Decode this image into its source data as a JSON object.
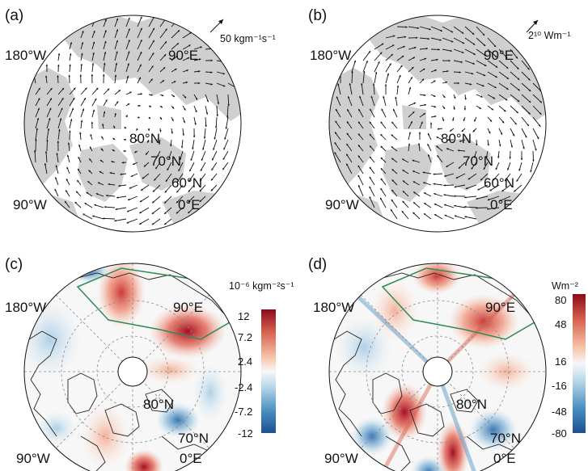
{
  "panels": [
    {
      "id": "a",
      "label": "(a)",
      "type": "vector",
      "scale_label": "50 kgm⁻¹s⁻¹",
      "geo_labels": [
        "180°W",
        "90°E",
        "80°N",
        "70°N",
        "60°N",
        "90°W",
        "0°E"
      ]
    },
    {
      "id": "b",
      "label": "(b)",
      "type": "vector",
      "scale_label": "2¹⁰ Wm⁻¹",
      "geo_labels": [
        "180°W",
        "90°E",
        "80°N",
        "70°N",
        "60°N",
        "90°W",
        "0°E"
      ]
    },
    {
      "id": "c",
      "label": "(c)",
      "type": "filled",
      "colorbar_title": "10⁻⁶ kgm⁻²s⁻¹",
      "colorbar_ticks": [
        "12",
        "7.2",
        "2.4",
        "-2.4",
        "-7.2",
        "-12"
      ],
      "geo_labels": [
        "180°W",
        "90°E",
        "80°N",
        "70°N",
        "90°W",
        "0°E"
      ]
    },
    {
      "id": "d",
      "label": "(d)",
      "type": "filled",
      "colorbar_title": "Wm⁻²",
      "colorbar_ticks": [
        "80",
        "48",
        "16",
        "-16",
        "-48",
        "-80"
      ],
      "geo_labels": [
        "180°W",
        "90°E",
        "80°N",
        "70°N",
        "90°W",
        "0°E"
      ]
    }
  ],
  "colors": {
    "land": "#cfcfcf",
    "ocean": "#ffffff",
    "vector": "#111111",
    "box": "#2e8b57",
    "positive_max": "#8b0a1a",
    "negative_max": "#1d4f91"
  }
}
